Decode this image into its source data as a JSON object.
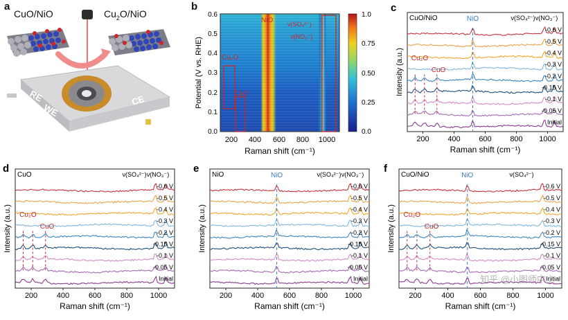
{
  "panels": {
    "a": {
      "label": "a",
      "left_title": "CuO/NiO",
      "right_title_main": "Cu",
      "right_title_sub": "2",
      "right_title_rest": "O/NiO",
      "electrode_labels": [
        "RE",
        "WE",
        "CE"
      ]
    },
    "b": {
      "label": "b",
      "ylabel": "Potential (V vs. RHE)",
      "xlabel": "Raman shift (cm⁻¹)",
      "xticks": [
        "200",
        "400",
        "600",
        "800",
        "1000"
      ],
      "yticks": [
        "0.6",
        "0.5",
        "0.4",
        "0.3",
        "0.2",
        "0.1",
        "0.0"
      ],
      "annotations": [
        "NiO",
        "Cu₂O",
        "CuO",
        "ν(SO₄²⁻)",
        "ν(NO₃⁻)"
      ],
      "colorbar_ticks": [
        "1.0",
        "0.75",
        "0.50",
        "0.25",
        "0.0"
      ]
    },
    "c": {
      "label": "c",
      "title": "CuO/NiO",
      "peak_labels": [
        "NiO",
        "Cu₂O",
        "CuO"
      ],
      "ion_labels": [
        "ν(SO₄²⁻)",
        "ν(NO₃⁻)"
      ],
      "xticks": [
        "200",
        "400",
        "600",
        "800",
        "1000"
      ],
      "ylabel": "Intensity (a.u.)",
      "xlabel": "Raman shift (cm⁻¹)",
      "potentials": [
        "-0.6 V",
        "-0.5 V",
        "-0.4 V",
        "-0.3 V",
        "-0.2 V",
        "-0.15 V",
        "-0.1 V",
        "-0.05 V",
        "Initial"
      ]
    },
    "d": {
      "label": "d",
      "title": "CuO",
      "peak_labels": [
        "Cu₂O",
        "CuO"
      ],
      "ion_labels": [
        "ν(SO₄²⁻)",
        "ν(NO₃⁻)"
      ],
      "xticks": [
        "200",
        "400",
        "600",
        "800",
        "1000"
      ],
      "ylabel": "Intensity (a.u.)",
      "xlabel": "Raman shift (cm⁻¹)",
      "potentials": [
        "-0.6 V",
        "-0.5 V",
        "-0.4 V",
        "-0.3 V",
        "-0.2 V",
        "-0.15 V",
        "-0.1 V",
        "-0.05 V",
        "Initial"
      ]
    },
    "e": {
      "label": "e",
      "title": "NiO",
      "peak_labels": [
        "NiO"
      ],
      "ion_labels": [
        "ν(SO₄²⁻)",
        "ν(NO₃⁻)"
      ],
      "xticks": [
        "200",
        "400",
        "600",
        "800",
        "1000"
      ],
      "ylabel": "Intensity (a.u.)",
      "xlabel": "Raman shift (cm⁻¹)",
      "potentials": [
        "-0.6 V",
        "-0.5 V",
        "-0.4 V",
        "-0.3 V",
        "-0.2 V",
        "-0.15 V",
        "-0.1 V",
        "-0.05 V",
        "Initial"
      ]
    },
    "f": {
      "label": "f",
      "title": "CuO/NiO",
      "peak_labels": [
        "NiO",
        "Cu₂O",
        "CuO"
      ],
      "ion_labels": [
        "ν(SO₄²⁻)"
      ],
      "xticks": [
        "200",
        "400",
        "600",
        "800",
        "1000"
      ],
      "ylabel": "Intensity (a.u.)",
      "xlabel": "Raman shift (cm⁻¹)",
      "potentials": [
        "-0.6 V",
        "-0.5 V",
        "-0.4 V",
        "-0.3 V",
        "-0.2 V",
        "-0.15 V",
        "-0.1 V",
        "-0.05 V",
        "Initial"
      ],
      "watermark": "知乎 @小图师中上"
    }
  },
  "series_colors": [
    "#c8333d",
    "#e8a34a",
    "#f0a62c",
    "#7fb6dd",
    "#3a86c2",
    "#1d4e78",
    "#d48bc8",
    "#a66ab3",
    "#8b3a8f"
  ],
  "chart_data": [
    {
      "type": "heatmap",
      "panel": "b",
      "title": "",
      "xlabel": "Raman shift (cm⁻¹)",
      "ylabel": "Potential (V vs. RHE)",
      "xlim": [
        100,
        1100
      ],
      "ylim": [
        0.0,
        0.6
      ],
      "colorbar_range": [
        0.0,
        1.0
      ],
      "features": [
        {
          "name": "NiO",
          "x": 520
        },
        {
          "name": "Cu₂O",
          "x": 200
        },
        {
          "name": "CuO",
          "x": 290
        },
        {
          "name": "ν(SO₄²⁻)",
          "x": 980
        },
        {
          "name": "ν(NO₃⁻)",
          "x": 1045
        }
      ]
    },
    {
      "type": "line",
      "panel": "c",
      "xlabel": "Raman shift (cm⁻¹)",
      "ylabel": "Intensity (a.u.)",
      "xlim": [
        100,
        1100
      ],
      "series_names": [
        "-0.6 V",
        "-0.5 V",
        "-0.4 V",
        "-0.3 V",
        "-0.2 V",
        "-0.15 V",
        "-0.1 V",
        "-0.05 V",
        "Initial"
      ],
      "peaks": [
        520,
        980,
        1045
      ],
      "extra_peaks_low_series": [
        150,
        210,
        290
      ]
    },
    {
      "type": "line",
      "panel": "d",
      "xlabel": "Raman shift (cm⁻¹)",
      "ylabel": "Intensity (a.u.)",
      "xlim": [
        100,
        1100
      ],
      "series_names": [
        "-0.6 V",
        "-0.5 V",
        "-0.4 V",
        "-0.3 V",
        "-0.2 V",
        "-0.15 V",
        "-0.1 V",
        "-0.05 V",
        "Initial"
      ],
      "peaks": [
        980,
        1045
      ],
      "extra_peaks_low_series": [
        150,
        210,
        290
      ]
    },
    {
      "type": "line",
      "panel": "e",
      "xlabel": "Raman shift (cm⁻¹)",
      "ylabel": "Intensity (a.u.)",
      "xlim": [
        100,
        1100
      ],
      "series_names": [
        "-0.6 V",
        "-0.5 V",
        "-0.4 V",
        "-0.3 V",
        "-0.2 V",
        "-0.15 V",
        "-0.1 V",
        "-0.05 V",
        "Initial"
      ],
      "peaks": [
        520,
        980,
        1045
      ],
      "extra_peaks_low_series": []
    },
    {
      "type": "line",
      "panel": "f",
      "xlabel": "Raman shift (cm⁻¹)",
      "ylabel": "Intensity (a.u.)",
      "xlim": [
        100,
        1100
      ],
      "series_names": [
        "-0.6 V",
        "-0.5 V",
        "-0.4 V",
        "-0.3 V",
        "-0.2 V",
        "-0.15 V",
        "-0.1 V",
        "-0.05 V",
        "Initial"
      ],
      "peaks": [
        520,
        980
      ],
      "extra_peaks_low_series": [
        150,
        210,
        290
      ]
    }
  ]
}
